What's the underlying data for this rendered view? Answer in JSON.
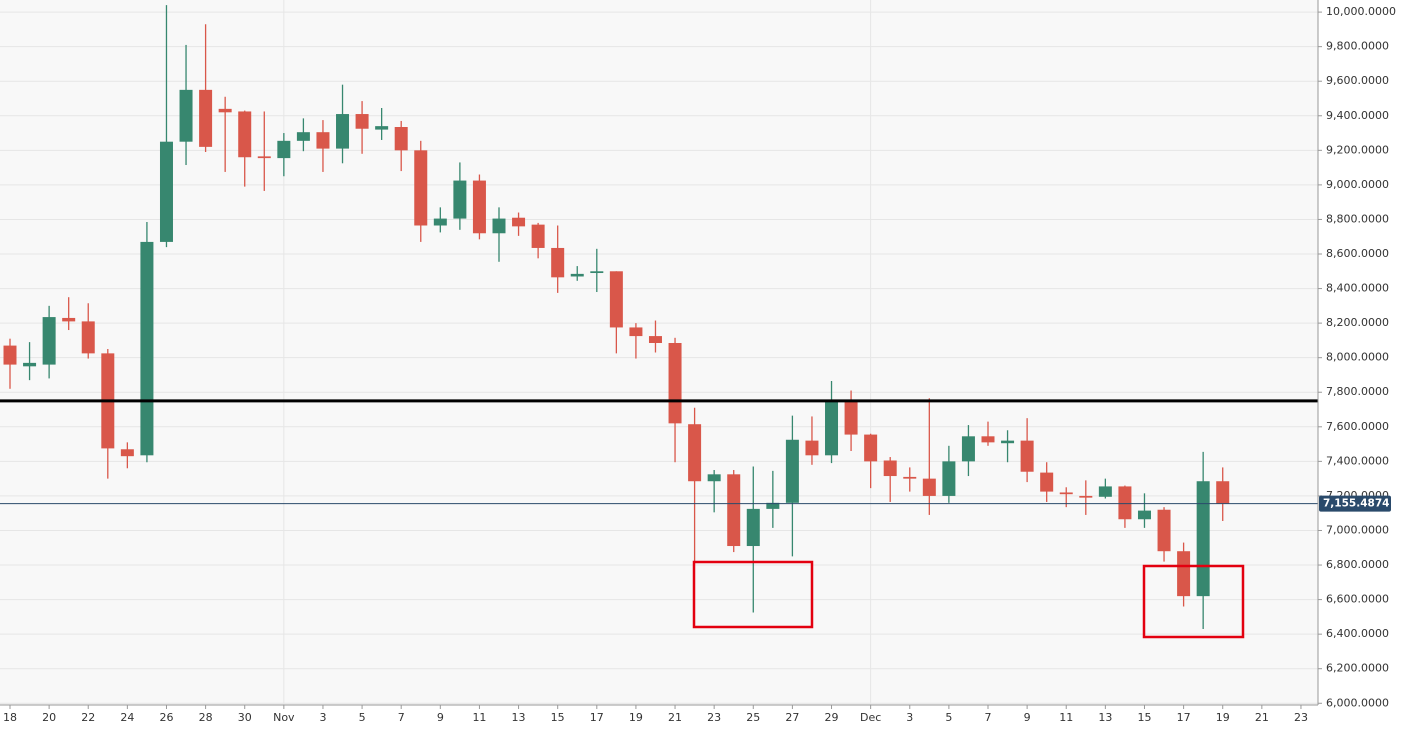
{
  "chart_data": {
    "type": "candlestick",
    "categories": [
      "18",
      null,
      "20",
      null,
      "22",
      null,
      "24",
      null,
      "26",
      null,
      "28",
      null,
      "30",
      null,
      "Nov",
      null,
      "3",
      null,
      "5",
      null,
      "7",
      null,
      "9",
      null,
      "11",
      null,
      "13",
      null,
      "15",
      null,
      "17",
      null,
      "19",
      null,
      "21",
      null,
      "23",
      null,
      "25",
      null,
      "27",
      null,
      "29",
      null,
      "Dec",
      null,
      "3",
      null,
      "5",
      null,
      "7",
      null,
      "9",
      null,
      "11",
      null,
      "13",
      null,
      "15",
      null,
      "17",
      null,
      "19",
      null,
      "21",
      null,
      "23"
    ],
    "open": [
      8070,
      7950,
      7960,
      8230,
      8210,
      8025,
      7470,
      7435,
      8670,
      9250,
      9550,
      9440,
      9425,
      9165,
      9155,
      9255,
      9305,
      9210,
      9410,
      9320,
      9335,
      9200,
      8765,
      8805,
      9025,
      8720,
      8810,
      8770,
      8635,
      8470,
      8490,
      8500,
      8175,
      8125,
      8085,
      7615,
      7285,
      7325,
      6910,
      7125,
      7160,
      7520,
      7435,
      7750,
      7555,
      7405,
      7310,
      7300,
      7200,
      7400,
      7545,
      7505,
      7520,
      7335,
      7220,
      7200,
      7195,
      7255,
      7065,
      7120,
      6880,
      6620,
      7285,
      null,
      null,
      null,
      null
    ],
    "high": [
      8110,
      8090,
      8300,
      8350,
      8315,
      8050,
      7510,
      8785,
      10040,
      9810,
      9930,
      9510,
      9430,
      9425,
      9300,
      9385,
      9375,
      9580,
      9485,
      9445,
      9370,
      9255,
      8870,
      9130,
      9060,
      8870,
      8840,
      8780,
      8765,
      8530,
      8630,
      8500,
      8200,
      8215,
      8115,
      7710,
      7350,
      7350,
      7370,
      7345,
      7665,
      7660,
      7865,
      7810,
      7560,
      7425,
      7365,
      7765,
      7490,
      7610,
      7630,
      7580,
      7650,
      7395,
      7250,
      7290,
      7300,
      7260,
      7215,
      7135,
      6930,
      7455,
      7365,
      null,
      null,
      null,
      null
    ],
    "low": [
      7820,
      7870,
      7880,
      8160,
      7995,
      7300,
      7360,
      7395,
      8640,
      9115,
      9190,
      9075,
      8990,
      8965,
      9050,
      9195,
      9075,
      9125,
      9180,
      9260,
      9080,
      8670,
      8725,
      8740,
      8685,
      8555,
      8705,
      8575,
      8375,
      8445,
      8380,
      8025,
      7995,
      8030,
      7395,
      6815,
      7105,
      6875,
      6525,
      7015,
      6850,
      7380,
      7390,
      7460,
      7245,
      7165,
      7225,
      7090,
      7160,
      7315,
      7490,
      7395,
      7280,
      7165,
      7135,
      7090,
      7185,
      7015,
      7015,
      6820,
      6560,
      6430,
      7055,
      null,
      null,
      null,
      null
    ],
    "close": [
      7960,
      7970,
      8235,
      8210,
      8025,
      7475,
      7430,
      8670,
      9250,
      9550,
      9220,
      9420,
      9160,
      9155,
      9255,
      9305,
      9210,
      9410,
      9325,
      9340,
      9200,
      8765,
      8805,
      9025,
      8720,
      8805,
      8760,
      8635,
      8465,
      8485,
      8500,
      8175,
      8125,
      8085,
      7620,
      7285,
      7325,
      6910,
      7125,
      7160,
      7525,
      7435,
      7750,
      7555,
      7400,
      7315,
      7300,
      7200,
      7400,
      7545,
      7510,
      7520,
      7340,
      7225,
      7210,
      7190,
      7255,
      7065,
      7115,
      6880,
      6620,
      7285,
      7155,
      null,
      null,
      null,
      null
    ],
    "up_color": "#37876f",
    "down_color": "#d9574a",
    "ylim": [
      5990,
      10070
    ],
    "yticks": [
      {
        "value": 6000,
        "label": "6,000.0000"
      },
      {
        "value": 6200,
        "label": "6,200.0000"
      },
      {
        "value": 6400,
        "label": "6,400.0000"
      },
      {
        "value": 6600,
        "label": "6,600.0000"
      },
      {
        "value": 6800,
        "label": "6,800.0000"
      },
      {
        "value": 7000,
        "label": "7,000.0000"
      },
      {
        "value": 7200,
        "label": "7,200.0000"
      },
      {
        "value": 7400,
        "label": "7,400.0000"
      },
      {
        "value": 7600,
        "label": "7,600.0000"
      },
      {
        "value": 7800,
        "label": "7,800.0000"
      },
      {
        "value": 8000,
        "label": "8,000.0000"
      },
      {
        "value": 8200,
        "label": "8,200.0000"
      },
      {
        "value": 8400,
        "label": "8,400.0000"
      },
      {
        "value": 8600,
        "label": "8,600.0000"
      },
      {
        "value": 8800,
        "label": "8,800.0000"
      },
      {
        "value": 9000,
        "label": "9,000.0000"
      },
      {
        "value": 9200,
        "label": "9,200.0000"
      },
      {
        "value": 9400,
        "label": "9,400.0000"
      },
      {
        "value": 9600,
        "label": "9,600.0000"
      },
      {
        "value": 9800,
        "label": "9,800.0000"
      },
      {
        "value": 10000,
        "label": "10,000.0000"
      }
    ],
    "grid": true,
    "reference_lines": [
      {
        "value": 7750,
        "color": "#000000"
      }
    ],
    "last_price": {
      "value": 7155.4874,
      "label": "7,155.4874",
      "color": "#2a4a6b"
    }
  }
}
